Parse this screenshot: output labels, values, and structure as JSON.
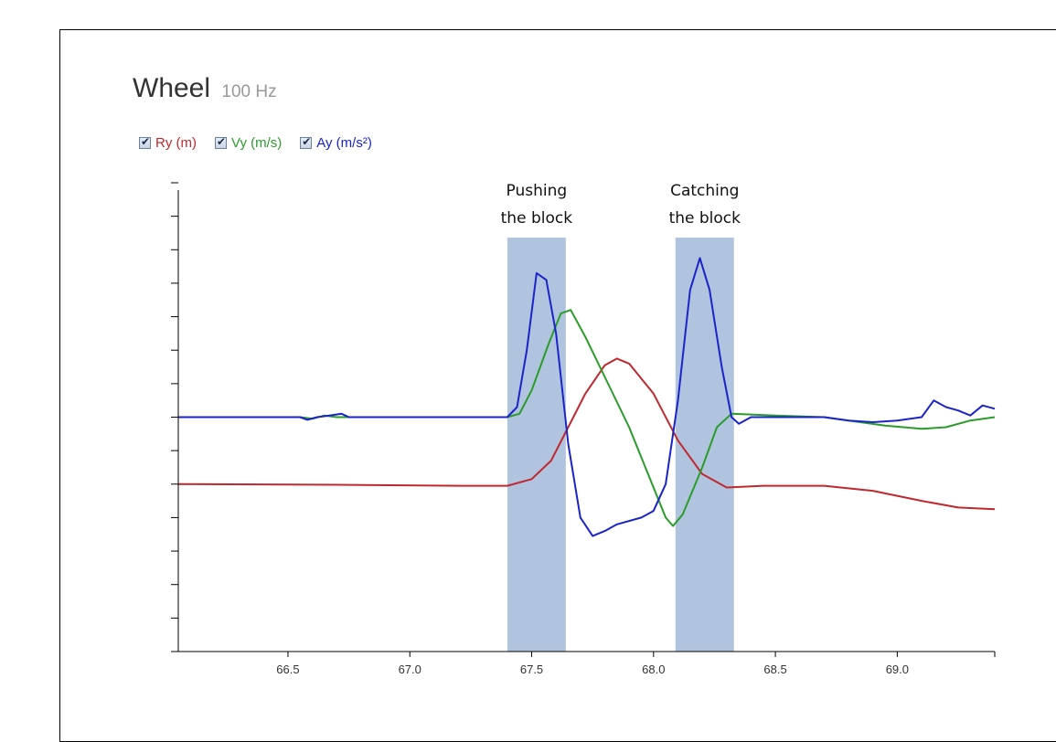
{
  "header": {
    "title": "Wheel",
    "rate": "100 Hz"
  },
  "legend": [
    {
      "label": "Ry (m)",
      "color": "#c0282d"
    },
    {
      "label": "Vy (m/s)",
      "color": "#2a9c2a"
    },
    {
      "label": "Ay (m/s²)",
      "color": "#1a24c8"
    }
  ],
  "chart_data": {
    "type": "line",
    "xlim": [
      66.05,
      69.4
    ],
    "ylim": [
      -7,
      7
    ],
    "x_ticks": [
      66.5,
      67.0,
      67.5,
      68.0,
      68.5,
      69.0
    ],
    "x_tick_labels": [
      "66.5",
      "67.0",
      "67.5",
      "68.0",
      "68.5",
      "69.0"
    ],
    "y_ticks": [
      -7,
      -6,
      -5,
      -4,
      -3,
      -2,
      -1,
      0,
      1,
      2,
      3,
      4,
      5,
      6,
      7
    ],
    "y_tick_labels": [],
    "grid": false,
    "legend_position": "top-left",
    "annotations": [
      {
        "label_lines": [
          "Pushing",
          "the block"
        ],
        "x_range": [
          67.4,
          67.64
        ]
      },
      {
        "label_lines": [
          "Catching",
          "the block"
        ],
        "x_range": [
          68.09,
          68.33
        ]
      }
    ],
    "series": [
      {
        "name": "Ry (m)",
        "color": "#c0282d",
        "points": [
          [
            66.05,
            -2.0
          ],
          [
            66.7,
            -2.02
          ],
          [
            67.2,
            -2.05
          ],
          [
            67.4,
            -2.05
          ],
          [
            67.5,
            -1.85
          ],
          [
            67.58,
            -1.3
          ],
          [
            67.65,
            -0.3
          ],
          [
            67.72,
            0.7
          ],
          [
            67.8,
            1.55
          ],
          [
            67.85,
            1.75
          ],
          [
            67.9,
            1.6
          ],
          [
            68.0,
            0.7
          ],
          [
            68.1,
            -0.7
          ],
          [
            68.2,
            -1.7
          ],
          [
            68.3,
            -2.1
          ],
          [
            68.45,
            -2.05
          ],
          [
            68.7,
            -2.05
          ],
          [
            68.9,
            -2.2
          ],
          [
            69.1,
            -2.5
          ],
          [
            69.25,
            -2.7
          ],
          [
            69.4,
            -2.75
          ]
        ]
      },
      {
        "name": "Vy (m/s)",
        "color": "#2a9c2a",
        "points": [
          [
            66.05,
            0.0
          ],
          [
            66.55,
            0.0
          ],
          [
            66.6,
            -0.05
          ],
          [
            66.65,
            0.05
          ],
          [
            66.7,
            0.0
          ],
          [
            67.4,
            0.0
          ],
          [
            67.45,
            0.1
          ],
          [
            67.5,
            0.8
          ],
          [
            67.57,
            2.2
          ],
          [
            67.62,
            3.1
          ],
          [
            67.66,
            3.2
          ],
          [
            67.72,
            2.4
          ],
          [
            67.8,
            1.2
          ],
          [
            67.9,
            -0.3
          ],
          [
            68.0,
            -2.1
          ],
          [
            68.05,
            -3.0
          ],
          [
            68.08,
            -3.25
          ],
          [
            68.12,
            -2.9
          ],
          [
            68.2,
            -1.5
          ],
          [
            68.26,
            -0.3
          ],
          [
            68.32,
            0.1
          ],
          [
            68.5,
            0.05
          ],
          [
            68.7,
            0.0
          ],
          [
            68.8,
            -0.1
          ],
          [
            68.95,
            -0.25
          ],
          [
            69.1,
            -0.35
          ],
          [
            69.2,
            -0.3
          ],
          [
            69.3,
            -0.1
          ],
          [
            69.4,
            0.0
          ]
        ]
      },
      {
        "name": "Ay (m/s²)",
        "color": "#1a24c8",
        "points": [
          [
            66.05,
            0.0
          ],
          [
            66.55,
            0.0
          ],
          [
            66.58,
            -0.08
          ],
          [
            66.62,
            0.0
          ],
          [
            66.67,
            0.05
          ],
          [
            66.72,
            0.1
          ],
          [
            66.75,
            0.0
          ],
          [
            67.4,
            0.0
          ],
          [
            67.44,
            0.3
          ],
          [
            67.48,
            2.0
          ],
          [
            67.52,
            4.3
          ],
          [
            67.56,
            4.1
          ],
          [
            67.6,
            2.5
          ],
          [
            67.65,
            -0.8
          ],
          [
            67.7,
            -3.0
          ],
          [
            67.75,
            -3.55
          ],
          [
            67.8,
            -3.4
          ],
          [
            67.85,
            -3.2
          ],
          [
            67.95,
            -3.0
          ],
          [
            68.0,
            -2.8
          ],
          [
            68.05,
            -2.0
          ],
          [
            68.1,
            0.5
          ],
          [
            68.15,
            3.8
          ],
          [
            68.19,
            4.75
          ],
          [
            68.23,
            3.8
          ],
          [
            68.28,
            1.5
          ],
          [
            68.32,
            0.0
          ],
          [
            68.35,
            -0.2
          ],
          [
            68.4,
            0.0
          ],
          [
            68.6,
            0.0
          ],
          [
            68.7,
            0.0
          ],
          [
            68.8,
            -0.1
          ],
          [
            68.9,
            -0.15
          ],
          [
            69.0,
            -0.1
          ],
          [
            69.1,
            0.0
          ],
          [
            69.15,
            0.5
          ],
          [
            69.2,
            0.3
          ],
          [
            69.25,
            0.2
          ],
          [
            69.3,
            0.05
          ],
          [
            69.35,
            0.35
          ],
          [
            69.4,
            0.25
          ]
        ]
      }
    ]
  }
}
